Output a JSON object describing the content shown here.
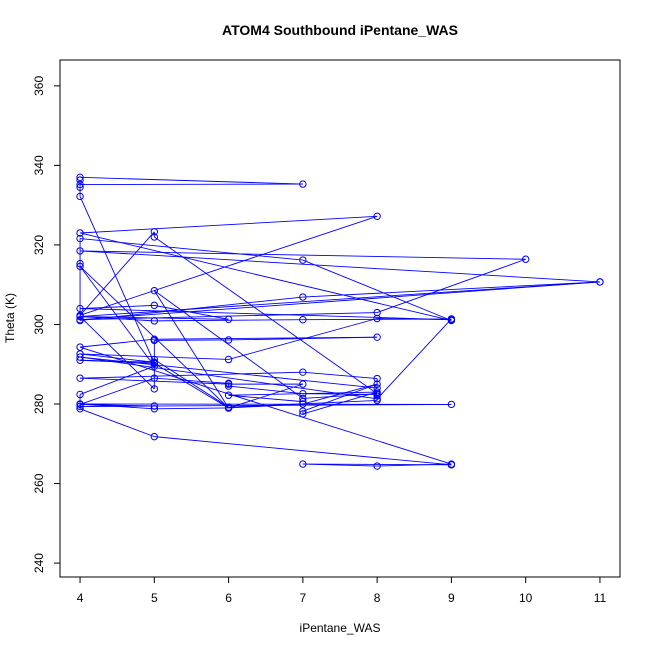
{
  "chart_data": {
    "type": "scatter",
    "title": "ATOM4 Southbound iPentane_WAS",
    "xlabel": "iPentane_WAS",
    "ylabel": "Theta (K)",
    "xlim": [
      3.73,
      11.27
    ],
    "ylim": [
      236.5,
      366.5
    ],
    "xticks": [
      "4",
      "5",
      "6",
      "7",
      "8",
      "9",
      "10",
      "11"
    ],
    "yticks": [
      "240",
      "260",
      "280",
      "300",
      "320",
      "340",
      "360"
    ],
    "grid": false,
    "legend": "none",
    "series_color": "#0000ff",
    "connected": true,
    "marker": "open-circle",
    "points": [
      [
        4,
        337.0
      ],
      [
        7,
        335.3
      ],
      [
        4,
        335.2
      ],
      [
        4,
        336.3
      ],
      [
        4,
        334.5
      ],
      [
        4,
        332.2
      ],
      [
        5,
        290.3
      ],
      [
        5,
        291.2
      ],
      [
        6,
        279.2
      ],
      [
        8,
        280.9
      ],
      [
        8,
        282.0
      ],
      [
        8,
        282.4
      ],
      [
        7,
        282.6
      ],
      [
        6,
        284.5
      ],
      [
        6,
        285.2
      ],
      [
        5,
        286.5
      ],
      [
        4,
        279.9
      ],
      [
        5,
        279.5
      ],
      [
        4,
        279.4
      ],
      [
        9,
        279.9
      ],
      [
        4,
        280.0
      ],
      [
        5,
        278.8
      ],
      [
        6,
        279.0
      ],
      [
        5,
        290.2
      ],
      [
        4,
        291.0
      ],
      [
        5,
        290.5
      ],
      [
        4,
        292.6
      ],
      [
        6,
        291.2
      ],
      [
        8,
        301.5
      ],
      [
        9,
        301.2
      ],
      [
        4,
        304.0
      ],
      [
        5,
        304.8
      ],
      [
        6,
        301.3
      ],
      [
        4,
        302.0
      ],
      [
        5,
        300.9
      ],
      [
        7,
        301.2
      ],
      [
        9,
        301.4
      ],
      [
        8,
        281.3
      ],
      [
        4,
        291.8
      ],
      [
        8,
        284.0
      ],
      [
        8,
        286.4
      ],
      [
        7,
        288.0
      ],
      [
        4,
        286.5
      ],
      [
        6,
        285.0
      ],
      [
        7,
        285.0
      ],
      [
        6,
        279.0
      ],
      [
        4,
        314.6
      ],
      [
        5,
        289.5
      ],
      [
        4,
        282.4
      ],
      [
        4,
        278.8
      ],
      [
        5,
        271.8
      ],
      [
        9,
        264.7
      ],
      [
        7,
        264.9
      ],
      [
        8,
        264.4
      ],
      [
        9,
        264.9
      ],
      [
        4,
        294.3
      ],
      [
        5,
        296.3
      ],
      [
        8,
        296.8
      ],
      [
        6,
        296.1
      ],
      [
        5,
        296.0
      ],
      [
        5,
        283.8
      ],
      [
        4,
        302.0
      ],
      [
        11,
        310.7
      ],
      [
        4,
        301.2
      ],
      [
        8,
        303.0
      ],
      [
        10,
        316.4
      ],
      [
        4,
        318.5
      ],
      [
        11,
        310.7
      ],
      [
        7,
        306.9
      ],
      [
        4,
        301.0
      ],
      [
        4,
        315.3
      ],
      [
        4,
        321.6
      ],
      [
        7,
        316.2
      ],
      [
        9,
        301.0
      ],
      [
        4,
        323.0
      ],
      [
        8,
        327.2
      ],
      [
        4,
        302.3
      ],
      [
        5,
        323.3
      ],
      [
        5,
        322.0
      ],
      [
        8,
        282.6
      ],
      [
        7,
        281.4
      ],
      [
        5,
        308.5
      ],
      [
        6,
        279.0
      ],
      [
        7,
        280.0
      ],
      [
        8,
        285.0
      ],
      [
        7,
        278.2
      ],
      [
        7,
        277.5
      ],
      [
        8,
        283.0
      ],
      [
        6,
        282.2
      ],
      [
        7,
        280.6
      ]
    ]
  }
}
